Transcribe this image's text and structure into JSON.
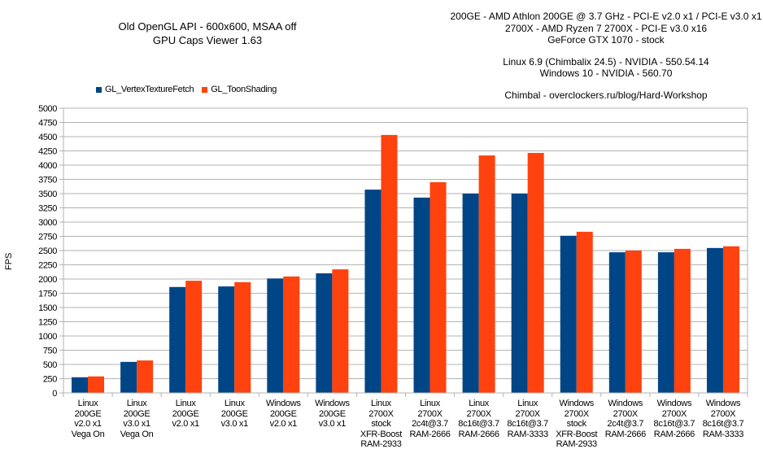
{
  "chart_data": {
    "type": "bar",
    "title": [
      "Old OpenGL API - 600x600, MSAA off",
      "GPU Caps Viewer 1.63"
    ],
    "info_lines": [
      "200GE - AMD Athlon 200GE @ 3.7 GHz - PCI-E v2.0 x1 / PCI-E v3.0 x1",
      "2700X - AMD Ryzen 7 2700X - PCI-E v3.0 x16",
      "GeForce GTX 1070 - stock",
      "",
      "Linux 6.9 (Chimbalix 24.5) - NVIDIA - 550.54.14",
      "Windows 10 - NVIDIA - 560.70",
      "",
      "Chimbal - overclockers.ru/blog/Hard-Workshop"
    ],
    "xlabel": "",
    "ylabel": "FPS",
    "ylim": [
      0,
      5000
    ],
    "ytick_step": 250,
    "yticks": [
      "0",
      "250",
      "500",
      "750",
      "1000",
      "1250",
      "1500",
      "1750",
      "2000",
      "2250",
      "2500",
      "2750",
      "3000",
      "3250",
      "3500",
      "3750",
      "4000",
      "4250",
      "4500",
      "4750",
      "5000"
    ],
    "grid": true,
    "legend_position": "top-left",
    "categories": [
      [
        "Linux",
        "200GE",
        "v2.0 x1",
        "Vega On"
      ],
      [
        "Linux",
        "200GE",
        "v3.0 x1",
        "Vega On"
      ],
      [
        "Linux",
        "200GE",
        "v2.0 x1"
      ],
      [
        "Linux",
        "200GE",
        "v3.0 x1"
      ],
      [
        "Windows",
        "200GE",
        "v2.0 x1"
      ],
      [
        "Windows",
        "200GE",
        "v3.0 x1"
      ],
      [
        "Linux",
        "2700X",
        "stock",
        "XFR-Boost",
        "RAM-2933"
      ],
      [
        "Linux",
        "2700X",
        "2c4t@3.7",
        "RAM-2666"
      ],
      [
        "Linux",
        "2700X",
        "8c16t@3.7",
        "RAM-2666"
      ],
      [
        "Linux",
        "2700X",
        "8c16t@3.7",
        "RAM-3333"
      ],
      [
        "Windows",
        "2700X",
        "stock",
        "XFR-Boost",
        "RAM-2933"
      ],
      [
        "Windows",
        "2700X",
        "2c4t@3.7",
        "RAM-2666"
      ],
      [
        "Windows",
        "2700X",
        "8c16t@3.7",
        "RAM-2666"
      ],
      [
        "Windows",
        "2700X",
        "8c16t@3.7",
        "RAM-3333"
      ]
    ],
    "series": [
      {
        "name": "GL_VertexTextureFetch",
        "color": "#004586",
        "values": [
          275,
          545,
          1860,
          1870,
          2010,
          2100,
          3570,
          3430,
          3500,
          3500,
          2760,
          2470,
          2470,
          2545
        ]
      },
      {
        "name": "GL_ToonShading",
        "color": "#ff420e",
        "values": [
          290,
          570,
          1970,
          1945,
          2045,
          2170,
          4530,
          3700,
          4170,
          4215,
          2830,
          2500,
          2530,
          2575
        ]
      }
    ]
  }
}
